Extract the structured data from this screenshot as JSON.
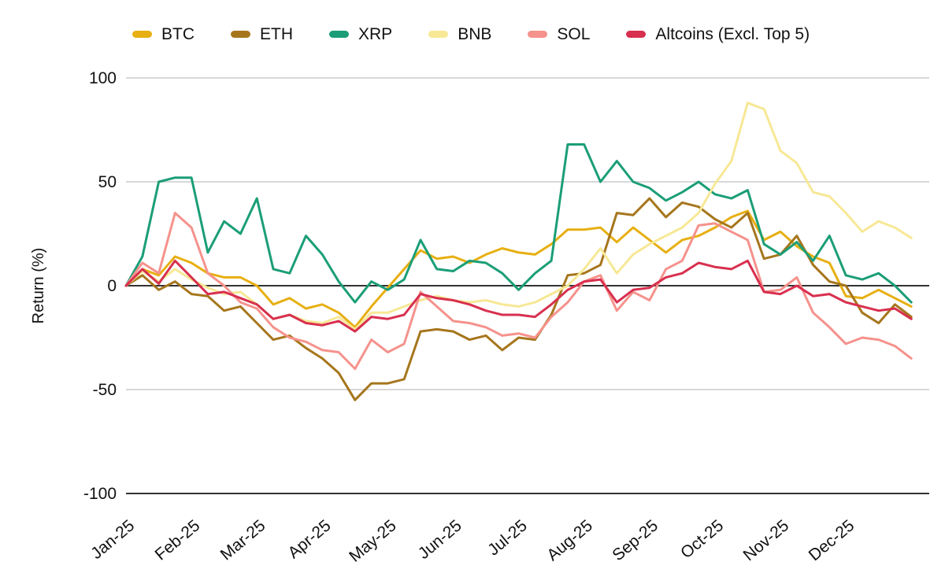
{
  "chart_data": {
    "type": "line",
    "title": "",
    "ylabel": "Return (%)",
    "x_tick_labels": [
      "Jan-25",
      "Feb-25",
      "Mar-25",
      "Apr-25",
      "May-25",
      "Jun-25",
      "Jul-25",
      "Aug-25",
      "Sep-25",
      "Oct-25",
      "Nov-25",
      "Dec-25"
    ],
    "x_step_months": 0.25,
    "x_range_months": [
      0,
      12
    ],
    "ylim": [
      -100,
      100
    ],
    "y_ticks": [
      100,
      50,
      0,
      -50,
      -100
    ],
    "grid": "horizontal light gridlines at 100, 50, -50; dark line at 0; dark baseline at -100; no vertical gridlines",
    "legend_position": "top",
    "x_label_rotation_deg": -40,
    "colors": {
      "grid_line": "#D8D8D8",
      "axis_line": "#333333",
      "text": "#111111",
      "background": "#FFFFFF"
    },
    "series": [
      {
        "name": "BTC",
        "color": "#E7AF12",
        "values": [
          0,
          8,
          5,
          14,
          11,
          6,
          4,
          4,
          0,
          -9,
          -6,
          -11,
          -9,
          -13,
          -20,
          -10,
          -1,
          8,
          17,
          13,
          14,
          11,
          15,
          18,
          16,
          15,
          20,
          27,
          27,
          28,
          21,
          28,
          22,
          16,
          22,
          24,
          28,
          33,
          36,
          22,
          26,
          19,
          14,
          11,
          -5,
          -6,
          -2,
          -6,
          -10
        ]
      },
      {
        "name": "ETH",
        "color": "#A6761D",
        "values": [
          0,
          5,
          -2,
          2,
          -4,
          -5,
          -12,
          -10,
          -18,
          -26,
          -24,
          -30,
          -35,
          -42,
          -55,
          -47,
          -47,
          -45,
          -22,
          -21,
          -22,
          -26,
          -24,
          -31,
          -25,
          -26,
          -14,
          5,
          6,
          10,
          35,
          34,
          42,
          33,
          40,
          38,
          32,
          28,
          35,
          13,
          15,
          24,
          10,
          2,
          0,
          -13,
          -18,
          -9,
          -15
        ]
      },
      {
        "name": "XRP",
        "color": "#1B9E77",
        "values": [
          0,
          14,
          50,
          52,
          52,
          16,
          31,
          25,
          42,
          8,
          6,
          24,
          15,
          2,
          -8,
          2,
          -2,
          3,
          22,
          8,
          7,
          12,
          11,
          6,
          -2,
          6,
          12,
          68,
          68,
          50,
          60,
          50,
          47,
          41,
          45,
          50,
          44,
          42,
          46,
          20,
          15,
          21,
          12,
          24,
          5,
          3,
          6,
          0,
          -8
        ]
      },
      {
        "name": "BNB",
        "color": "#F7E896",
        "values": [
          0,
          7,
          2,
          8,
          3,
          -1,
          -4,
          -3,
          -9,
          -16,
          -14,
          -17,
          -18,
          -15,
          -21,
          -13,
          -13,
          -10,
          -7,
          -5,
          -7,
          -8,
          -7,
          -9,
          -10,
          -8,
          -4,
          0,
          8,
          18,
          6,
          15,
          20,
          24,
          28,
          35,
          49,
          60,
          88,
          85,
          65,
          59,
          45,
          43,
          35,
          26,
          31,
          28,
          23
        ]
      },
      {
        "name": "SOL",
        "color": "#F5928C",
        "values": [
          0,
          11,
          6,
          35,
          28,
          6,
          0,
          -8,
          -11,
          -20,
          -25,
          -27,
          -31,
          -32,
          -40,
          -26,
          -32,
          -28,
          -3,
          -10,
          -17,
          -18,
          -20,
          -24,
          -23,
          -25,
          -15,
          -8,
          2,
          5,
          -12,
          -3,
          -7,
          8,
          12,
          29,
          30,
          26,
          22,
          -3,
          -2,
          4,
          -13,
          -20,
          -28,
          -25,
          -26,
          -29,
          -35
        ]
      },
      {
        "name": "Altcoins (Excl. Top 5)",
        "color": "#D8304F",
        "values": [
          0,
          8,
          1,
          12,
          4,
          -4,
          -3,
          -6,
          -9,
          -16,
          -14,
          -18,
          -19,
          -17,
          -22,
          -15,
          -16,
          -14,
          -4,
          -6,
          -7,
          -9,
          -12,
          -14,
          -14,
          -15,
          -9,
          -2,
          2,
          3,
          -8,
          -2,
          -1,
          4,
          6,
          11,
          9,
          8,
          12,
          -3,
          -4,
          0,
          -5,
          -4,
          -8,
          -10,
          -12,
          -11,
          -16
        ]
      }
    ]
  }
}
